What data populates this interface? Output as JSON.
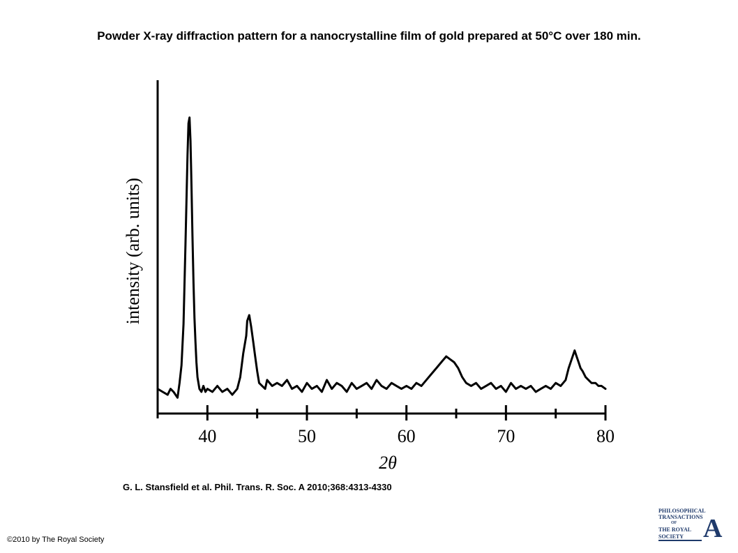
{
  "title": "Powder X-ray diffraction pattern for a nanocrystalline film of gold prepared at 50°C over 180 min.",
  "citation": "G. L. Stansfield et al. Phil. Trans. R. Soc. A 2010;368:4313-4330",
  "copyright": "©2010 by The Royal Society",
  "logo": {
    "line1": "PHILOSOPHICAL",
    "line2": "TRANSACTIONS",
    "line3": "OF",
    "line4": "THE ROYAL",
    "line5": "SOCIETY",
    "letter": "A",
    "color": "#1f3a6b"
  },
  "chart_data": {
    "type": "line",
    "title": "",
    "xlabel": "2θ",
    "ylabel": "intensity (arb. units)",
    "xlim": [
      35,
      80
    ],
    "ylim": [
      0,
      100
    ],
    "x_ticks": [
      40,
      50,
      60,
      70,
      80
    ],
    "x_tick_labels": [
      "40",
      "50",
      "60",
      "70",
      "80"
    ],
    "x_minor_ticks": [
      35,
      45,
      55,
      65,
      75
    ],
    "y_ticks": [],
    "grid": false,
    "legend": "none",
    "line_color": "#000000",
    "series": [
      {
        "values_x": [
          35.0,
          35.5,
          36.0,
          36.3,
          36.6,
          37.0,
          37.2,
          37.4,
          37.6,
          37.8,
          38.0,
          38.1,
          38.2,
          38.3,
          38.4,
          38.5,
          38.6,
          38.7,
          38.8,
          38.9,
          39.0,
          39.2,
          39.4,
          39.6,
          39.8,
          40.0,
          40.5,
          41.0,
          41.5,
          42.0,
          42.5,
          43.0,
          43.3,
          43.6,
          43.9,
          44.0,
          44.2,
          44.4,
          44.6,
          44.8,
          45.0,
          45.2,
          45.5,
          45.8,
          46.0,
          46.5,
          47.0,
          47.5,
          48.0,
          48.5,
          49.0,
          49.5,
          50.0,
          50.5,
          51.0,
          51.5,
          52.0,
          52.5,
          53.0,
          53.5,
          54.0,
          54.5,
          55.0,
          55.5,
          56.0,
          56.5,
          57.0,
          57.5,
          58.0,
          58.5,
          59.0,
          59.5,
          60.0,
          60.5,
          61.0,
          61.5,
          62.0,
          62.5,
          63.0,
          63.5,
          64.0,
          64.4,
          64.8,
          65.2,
          65.6,
          66.0,
          66.5,
          67.0,
          67.5,
          68.0,
          68.5,
          69.0,
          69.5,
          70.0,
          70.5,
          71.0,
          71.5,
          72.0,
          72.5,
          73.0,
          73.5,
          74.0,
          74.5,
          75.0,
          75.5,
          76.0,
          76.3,
          76.6,
          76.9,
          77.1,
          77.3,
          77.5,
          77.7,
          78.0,
          78.3,
          78.6,
          79.0,
          79.3,
          79.6,
          80.0
        ],
        "values_y": [
          6,
          5,
          4,
          6,
          5,
          3,
          8,
          14,
          28,
          55,
          85,
          96,
          98,
          90,
          75,
          58,
          42,
          30,
          22,
          15,
          10,
          6,
          5,
          7,
          5,
          6,
          5,
          7,
          5,
          6,
          4,
          6,
          10,
          18,
          24,
          29,
          31,
          27,
          22,
          17,
          12,
          8,
          7,
          6,
          9,
          7,
          8,
          7,
          9,
          6,
          7,
          5,
          8,
          6,
          7,
          5,
          9,
          6,
          8,
          7,
          5,
          8,
          6,
          7,
          8,
          6,
          9,
          7,
          6,
          8,
          7,
          6,
          7,
          6,
          8,
          7,
          9,
          11,
          13,
          15,
          17,
          16,
          15,
          13,
          10,
          8,
          7,
          8,
          6,
          7,
          8,
          6,
          7,
          5,
          8,
          6,
          7,
          6,
          7,
          5,
          6,
          7,
          6,
          8,
          7,
          9,
          13,
          16,
          19,
          17,
          15,
          13,
          12,
          10,
          9,
          8,
          8,
          7,
          7,
          6
        ]
      }
    ]
  }
}
